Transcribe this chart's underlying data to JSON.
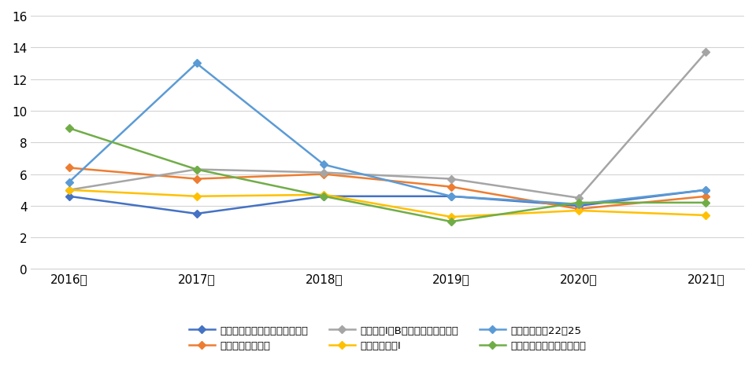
{
  "years": [
    "2016年",
    "2017年",
    "2018年",
    "2019年",
    "2020年",
    "2021年"
  ],
  "series": [
    {
      "label": "北海道　一般行政Ａ（第１回）",
      "color": "#4472C4",
      "marker": "D",
      "values": [
        4.6,
        3.5,
        4.6,
        4.6,
        4.0,
        5.0
      ]
    },
    {
      "label": "埼玉県　一般行政",
      "color": "#ED7D31",
      "marker": "D",
      "values": [
        6.4,
        5.7,
        6.0,
        5.2,
        3.8,
        4.6
      ]
    },
    {
      "label": "東京都　Ⅰ類B（行政－一般方式）",
      "color": "#A5A5A5",
      "marker": "D",
      "values": [
        5.0,
        6.3,
        6.1,
        5.7,
        4.5,
        13.7
      ]
    },
    {
      "label": "愛知県　行政Ⅰ",
      "color": "#FFC000",
      "marker": "D",
      "values": [
        5.0,
        4.6,
        4.7,
        3.3,
        3.7,
        3.4
      ]
    },
    {
      "label": "大阪府　行政22－25",
      "color": "#5B9BD5",
      "marker": "D",
      "values": [
        5.5,
        13.0,
        6.6,
        4.6,
        4.1,
        5.0
      ]
    },
    {
      "label": "広島県　行政－一般事務Ａ",
      "color": "#70AD47",
      "marker": "D",
      "values": [
        8.9,
        6.3,
        4.6,
        3.0,
        4.2,
        4.2
      ]
    }
  ],
  "ylim": [
    0,
    16
  ],
  "yticks": [
    0,
    2,
    4,
    6,
    8,
    10,
    12,
    14,
    16
  ],
  "background_color": "#FFFFFF",
  "grid_color": "#D3D3D3",
  "font_size": 9.5,
  "tick_fontsize": 11
}
